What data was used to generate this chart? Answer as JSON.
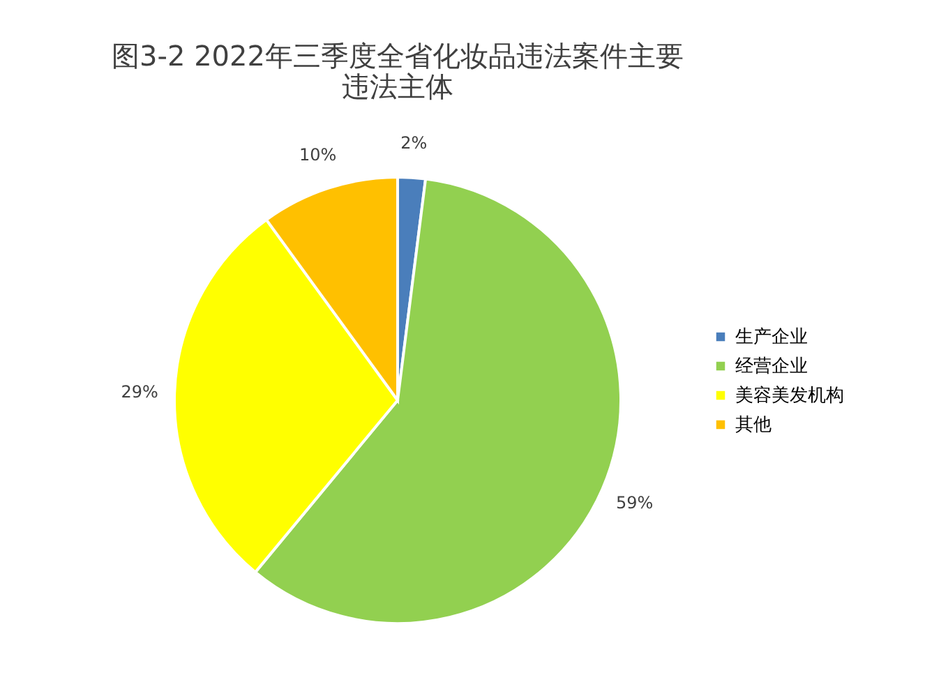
{
  "chart_data": {
    "type": "pie",
    "title": "图3-2  2022年三季度全省化妆品违法案件主要违法主体",
    "categories": [
      "生产企业",
      "经营企业",
      "美容美发机构",
      "其他"
    ],
    "values": [
      2,
      59,
      29,
      10
    ],
    "colors": [
      "#4a7ebb",
      "#92d050",
      "#ffff00",
      "#ffc000"
    ],
    "value_labels": [
      "2%",
      "59%",
      "29%",
      "10%"
    ],
    "legend": "right"
  }
}
